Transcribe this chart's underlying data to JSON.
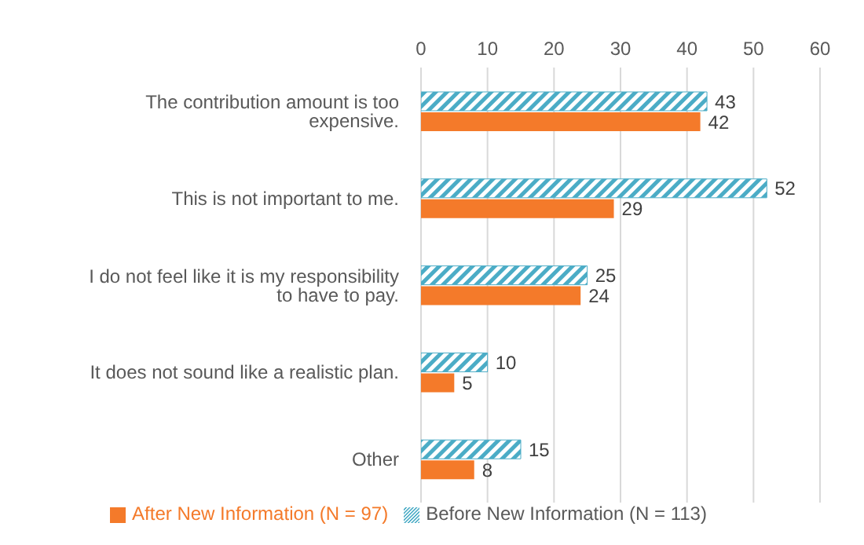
{
  "chart_data": {
    "type": "bar",
    "orientation": "horizontal",
    "categories": [
      "The contribution amount is too expensive.",
      "This is not important to me.",
      "I do not feel like it is my responsibility to have to pay.",
      "It does not sound like a realistic plan.",
      "Other"
    ],
    "series": [
      {
        "name": "Before New Information (N = 113)",
        "color": "#4bacc6",
        "values": [
          43,
          52,
          25,
          10,
          15
        ]
      },
      {
        "name": "After New Information (N = 97)",
        "color": "#f47a2a",
        "values": [
          42,
          29,
          24,
          5,
          8
        ]
      }
    ],
    "xlim": [
      0,
      60
    ],
    "xticks": [
      0,
      10,
      20,
      30,
      40,
      50,
      60
    ],
    "grid": "x",
    "data_labels": true,
    "legend": "bottom"
  }
}
